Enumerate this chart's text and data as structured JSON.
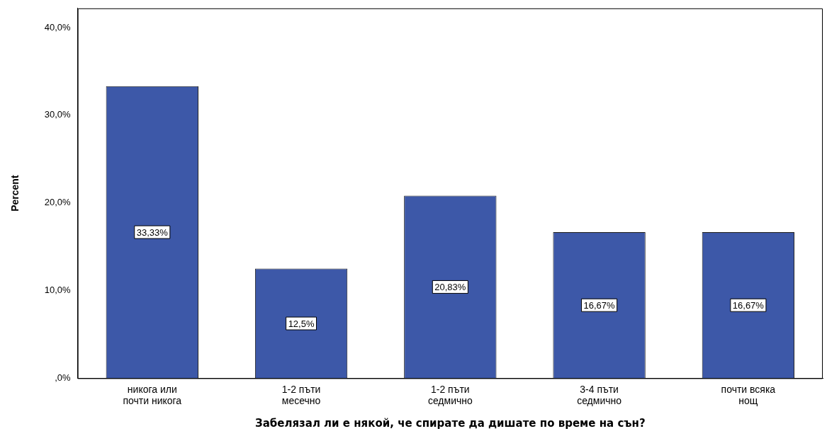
{
  "chart_data": {
    "type": "bar",
    "xlabel": "Забелязал ли е някой, че спирате да дишате по време на сън?",
    "ylabel": "Percent",
    "categories": [
      "никога или почти никога",
      "1-2 пъти месечно",
      "1-2 пъти седмично",
      "3-4 пъти седмично",
      "почти всяка нощ"
    ],
    "values": [
      33.33,
      12.5,
      20.83,
      16.67,
      16.67
    ],
    "value_labels": [
      "33,33%",
      "12,5%",
      "20,83%",
      "16,67%",
      "16,67%"
    ],
    "color": "#3d58a8",
    "ylim": [
      0,
      42.2
    ],
    "yticks": [
      {
        "value": 0,
        "label": ",0%"
      },
      {
        "value": 10,
        "label": "10,0%"
      },
      {
        "value": 20,
        "label": "20,0%"
      },
      {
        "value": 30,
        "label": "30,0%"
      },
      {
        "value": 40,
        "label": "40,0%"
      }
    ],
    "grid": false,
    "legend": false
  }
}
